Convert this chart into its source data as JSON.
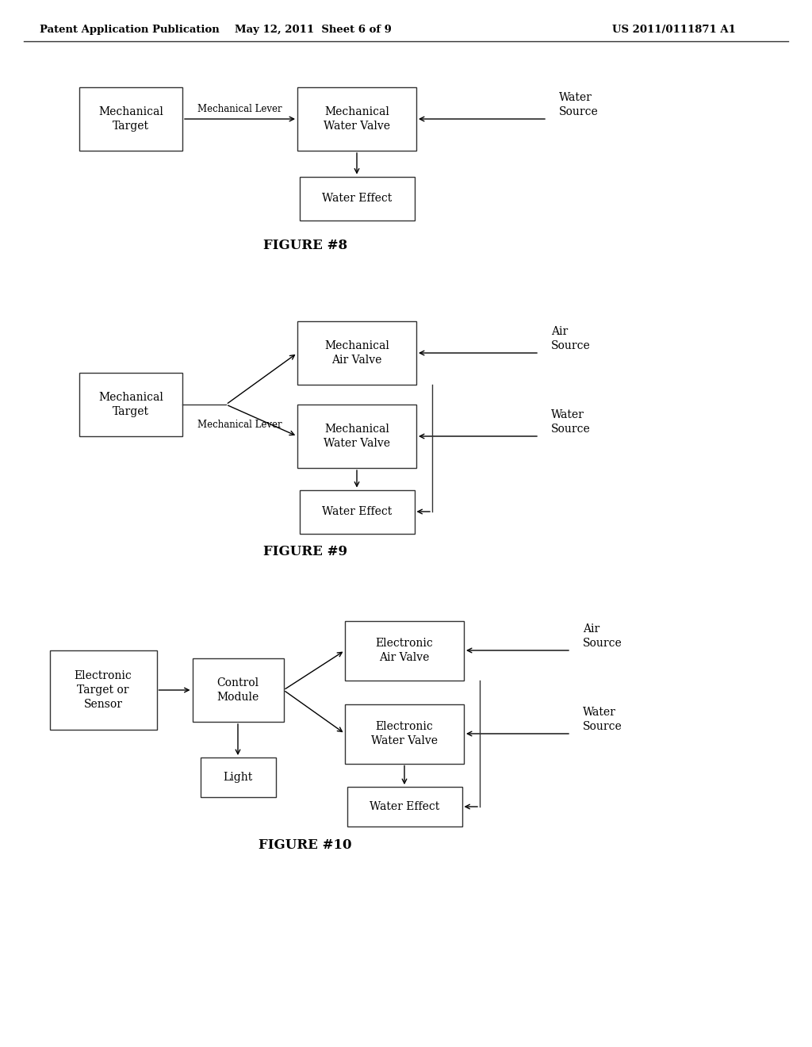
{
  "bg_color": "#ffffff",
  "header_left": "Patent Application Publication",
  "header_mid": "May 12, 2011  Sheet 6 of 9",
  "header_right": "US 2011/0111871 A1",
  "fig8_title": "FIGURE #8",
  "fig9_title": "FIGURE #9",
  "fig10_title": "FIGURE #10"
}
